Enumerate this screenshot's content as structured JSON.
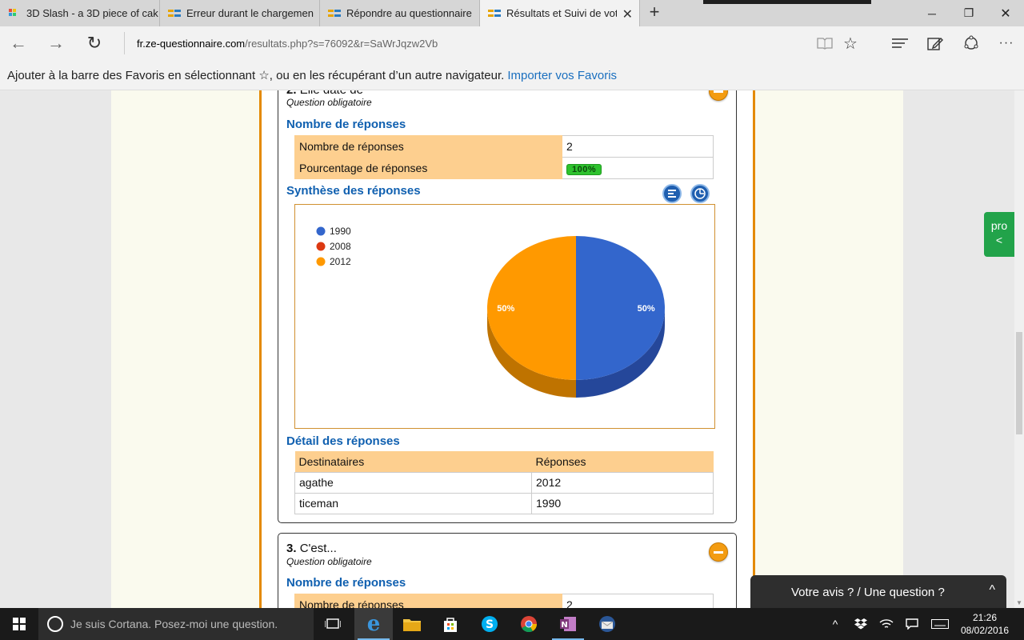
{
  "browser": {
    "tabs": [
      {
        "label": "3D Slash - a 3D piece of cak",
        "favicon": "3dslash-icon"
      },
      {
        "label": "Erreur durant le chargemen",
        "favicon": "ze-questionnaire-icon"
      },
      {
        "label": "Répondre au questionnaire",
        "favicon": "ze-questionnaire-icon"
      },
      {
        "label": "Résultats et Suivi de vot",
        "favicon": "ze-questionnaire-icon"
      }
    ],
    "url_domain": "fr.ze-questionnaire.com",
    "url_path": "/resultats.php?s=76092&r=SaWrJqzw2Vb",
    "favbar_text": "Ajouter à la barre des Favoris en sélectionnant ☆, ou en les récupérant d’un autre navigateur.",
    "favbar_link": "Importer vos Favoris"
  },
  "q2": {
    "number": "2.",
    "title": "Elle date de",
    "subtitle": "Question obligatoire",
    "responses_heading": "Nombre de réponses",
    "stats": [
      {
        "label": "Nombre de réponses",
        "value": "2"
      },
      {
        "label": "Pourcentage de réponses",
        "value": "100%"
      }
    ],
    "synthesis_heading": "Synthèse des réponses",
    "detail_heading": "Détail des réponses",
    "detail_headers": [
      "Destinataires",
      "Réponses"
    ],
    "detail_rows": [
      {
        "name": "agathe",
        "answer": "2012"
      },
      {
        "name": "ticeman",
        "answer": "1990"
      }
    ]
  },
  "chart_data": {
    "type": "pie",
    "categories": [
      "1990",
      "2008",
      "2012"
    ],
    "values": [
      50,
      0,
      50
    ],
    "labels": [
      "50%",
      "",
      "50%"
    ],
    "colors": [
      "#3366cc",
      "#dc3912",
      "#ff9900"
    ],
    "side_colors": [
      "#25479a",
      "#a52a0c",
      "#bf7300"
    ],
    "legend_position": "top-left"
  },
  "q3": {
    "number": "3.",
    "title": "C'est...",
    "subtitle": "Question obligatoire",
    "responses_heading": "Nombre de réponses",
    "stats": [
      {
        "label": "Nombre de réponses",
        "value": "2"
      }
    ]
  },
  "side_tab": {
    "line1": "pro",
    "line2": "<"
  },
  "feedback": {
    "label": "Votre avis ? / Une question ?",
    "chevron": "^"
  },
  "taskbar": {
    "cortana": "Je suis Cortana. Posez-moi une question.",
    "time": "21:26",
    "date": "08/02/2016"
  }
}
